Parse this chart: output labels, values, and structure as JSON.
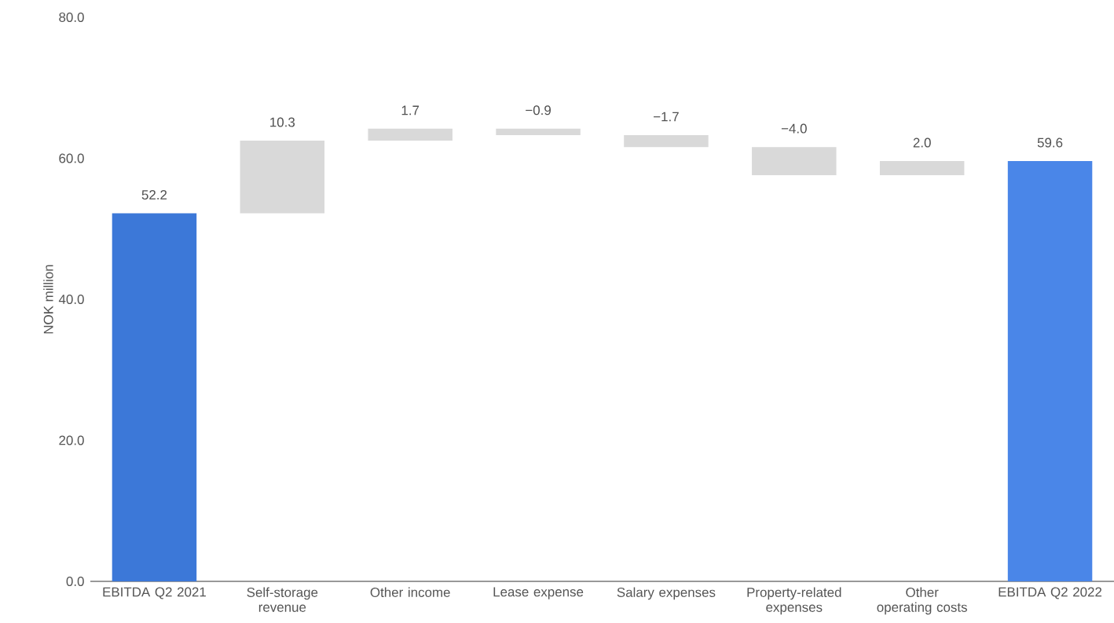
{
  "chart_data": {
    "type": "bar",
    "ylabel": "NOK million",
    "categories": [
      "EBITDA Q2 2021",
      "Self-storage revenue",
      "Other income",
      "Lease expense",
      "Salary expenses",
      "Property-related expenses",
      "Other operating costs",
      "EBITDA Q2 2022"
    ],
    "values": [
      52.2,
      10.3,
      1.7,
      -0.9,
      -1.7,
      -4.0,
      2.0,
      59.6
    ],
    "base": [
      0,
      52.2,
      62.5,
      64.2,
      63.3,
      61.6,
      57.6,
      0
    ],
    "colors": [
      "#3c78d8",
      "#d9d9d9",
      "#d9d9d9",
      "#d9d9d9",
      "#d9d9d9",
      "#d9d9d9",
      "#d9d9d9",
      "#4a86e8"
    ],
    "value_labels": [
      "52.2",
      "10.3",
      "1.7",
      "−0.9",
      "−1.7",
      "−4.0",
      "2.0",
      "59.6"
    ],
    "ylim": [
      0,
      80
    ],
    "yticks": [
      {
        "value": 0,
        "label": "0.0"
      },
      {
        "value": 20,
        "label": "20.0"
      },
      {
        "value": 40,
        "label": "40.0"
      },
      {
        "value": 60,
        "label": "60.0"
      },
      {
        "value": 80,
        "label": "80.0"
      }
    ]
  }
}
